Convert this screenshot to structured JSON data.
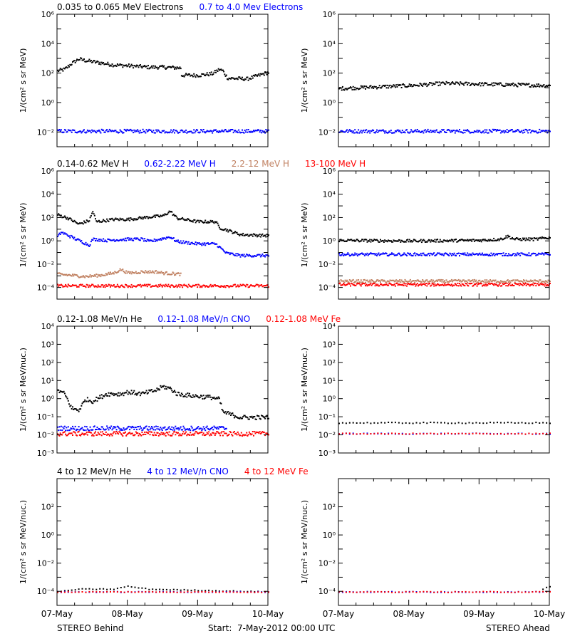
{
  "colors": {
    "black": "#000000",
    "blue": "#0000ff",
    "tan": "#c08060",
    "red": "#ff0000",
    "background": "#ffffff"
  },
  "x_tick_labels": [
    "07-May",
    "08-May",
    "09-May",
    "10-May"
  ],
  "footer": {
    "left": "STEREO Behind",
    "center": "Start:  7-May-2012 00:00 UTC",
    "right": "STEREO Ahead"
  },
  "rows": [
    {
      "ylabel": "1/(cm² s sr MeV)",
      "legend": [
        {
          "text": "0.035 to 0.065 MeV Electrons",
          "color": "black"
        },
        {
          "text": "0.7 to 4.0 Mev Electrons",
          "color": "blue"
        }
      ]
    },
    {
      "ylabel": "1/(cm² s sr MeV)",
      "legend": [
        {
          "text": "0.14-0.62 MeV H",
          "color": "black"
        },
        {
          "text": "0.62-2.22 MeV H",
          "color": "blue"
        },
        {
          "text": "2.2-12 MeV H",
          "color": "tan"
        },
        {
          "text": "13-100 MeV H",
          "color": "red"
        }
      ]
    },
    {
      "ylabel": "1/(cm² s sr MeV/nuc.)",
      "legend": [
        {
          "text": "0.12-1.08 MeV/n He",
          "color": "black"
        },
        {
          "text": "0.12-1.08 MeV/n CNO",
          "color": "blue"
        },
        {
          "text": "0.12-1.08 MeV Fe",
          "color": "red"
        }
      ]
    },
    {
      "ylabel": "1/(cm² s sr MeV/nuc.)",
      "legend": [
        {
          "text": "4 to 12 MeV/n He",
          "color": "black"
        },
        {
          "text": "4 to 12 MeV/n CNO",
          "color": "blue"
        },
        {
          "text": "4 to 12 MeV Fe",
          "color": "red"
        }
      ]
    }
  ],
  "chart_data": [
    {
      "id": "electrons-behind",
      "type": "scatter",
      "spacecraft": "STEREO Behind",
      "x_unit": "days since 07-May-2012 00:00 UTC",
      "xlim": [
        0,
        3
      ],
      "yscale": "log",
      "ylim_exp": [
        -3,
        6
      ],
      "yticks": [
        {
          "exp": -2,
          "label": "10⁻²"
        },
        {
          "exp": 0,
          "label": "10⁰"
        },
        {
          "exp": 2,
          "label": "10²"
        },
        {
          "exp": 4,
          "label": "10⁴"
        },
        {
          "exp": 6,
          "label": "10⁶"
        }
      ],
      "series": [
        {
          "name": "0.035 to 0.065 MeV Electrons",
          "color": "black",
          "log10_flux": [
            [
              0,
              2.2
            ],
            [
              0.1,
              2.3
            ],
            [
              0.2,
              2.7
            ],
            [
              0.3,
              3.0
            ],
            [
              0.4,
              2.9
            ],
            [
              0.6,
              2.75
            ],
            [
              0.8,
              2.6
            ],
            [
              1.0,
              2.55
            ],
            [
              1.3,
              2.45
            ],
            [
              1.5,
              2.45
            ],
            [
              1.75,
              2.4
            ],
            [
              1.76,
              1.9
            ],
            [
              2.0,
              1.9
            ],
            [
              2.2,
              2.0
            ],
            [
              2.3,
              2.3
            ],
            [
              2.35,
              2.2
            ],
            [
              2.42,
              1.7
            ],
            [
              2.7,
              1.65
            ],
            [
              2.8,
              1.8
            ],
            [
              3.0,
              2.1
            ]
          ]
        },
        {
          "name": "0.7 to 4.0 Mev Electrons",
          "color": "blue",
          "log10_flux": [
            [
              0,
              -1.9
            ],
            [
              3,
              -1.9
            ]
          ]
        }
      ]
    },
    {
      "id": "electrons-ahead",
      "type": "scatter",
      "spacecraft": "STEREO Ahead",
      "x_unit": "days since 07-May-2012 00:00 UTC",
      "xlim": [
        0,
        3
      ],
      "yscale": "log",
      "ylim_exp": [
        -3,
        6
      ],
      "yticks": [
        {
          "exp": -2,
          "label": "10⁻²"
        },
        {
          "exp": 0,
          "label": "10⁰"
        },
        {
          "exp": 2,
          "label": "10²"
        },
        {
          "exp": 4,
          "label": "10⁴"
        },
        {
          "exp": 6,
          "label": "10⁶"
        }
      ],
      "series": [
        {
          "name": "0.035 to 0.065 MeV Electrons",
          "color": "black",
          "log10_flux": [
            [
              0,
              1.0
            ],
            [
              1.0,
              1.2
            ],
            [
              1.5,
              1.35
            ],
            [
              2.0,
              1.3
            ],
            [
              3.0,
              1.2
            ]
          ]
        },
        {
          "name": "0.7 to 4.0 Mev Electrons",
          "color": "blue",
          "log10_flux": [
            [
              0,
              -1.9
            ],
            [
              3,
              -1.9
            ]
          ]
        }
      ]
    },
    {
      "id": "protons-behind",
      "type": "scatter",
      "spacecraft": "STEREO Behind",
      "x_unit": "days since 07-May-2012 00:00 UTC",
      "xlim": [
        0,
        3
      ],
      "yscale": "log",
      "ylim_exp": [
        -5,
        6
      ],
      "yticks": [
        {
          "exp": -4,
          "label": "10⁻⁴"
        },
        {
          "exp": -2,
          "label": "10⁻²"
        },
        {
          "exp": 0,
          "label": "10⁰"
        },
        {
          "exp": 2,
          "label": "10²"
        },
        {
          "exp": 4,
          "label": "10⁴"
        },
        {
          "exp": 6,
          "label": "10⁶"
        }
      ],
      "series": [
        {
          "name": "0.14-0.62 MeV H",
          "color": "black",
          "log10_flux": [
            [
              0,
              2.3
            ],
            [
              0.15,
              2.0
            ],
            [
              0.3,
              1.5
            ],
            [
              0.45,
              1.8
            ],
            [
              0.5,
              2.6
            ],
            [
              0.55,
              1.7
            ],
            [
              0.8,
              1.9
            ],
            [
              1.0,
              1.9
            ],
            [
              1.3,
              2.1
            ],
            [
              1.5,
              2.2
            ],
            [
              1.6,
              2.6
            ],
            [
              1.7,
              2.0
            ],
            [
              2.0,
              1.7
            ],
            [
              2.25,
              1.7
            ],
            [
              2.3,
              1.2
            ],
            [
              2.45,
              0.9
            ],
            [
              2.6,
              0.6
            ],
            [
              3.0,
              0.5
            ]
          ]
        },
        {
          "name": "0.62-2.22 MeV H",
          "color": "blue",
          "log10_flux": [
            [
              0,
              0.4
            ],
            [
              0.05,
              0.8
            ],
            [
              0.3,
              0.1
            ],
            [
              0.45,
              -0.3
            ],
            [
              0.5,
              0.2
            ],
            [
              0.7,
              0.1
            ],
            [
              1.0,
              0.2
            ],
            [
              1.2,
              0.2
            ],
            [
              1.3,
              0.0
            ],
            [
              1.6,
              0.4
            ],
            [
              1.7,
              0.0
            ],
            [
              2.0,
              -0.2
            ],
            [
              2.25,
              -0.2
            ],
            [
              2.4,
              -1.0
            ],
            [
              2.6,
              -1.2
            ],
            [
              3.0,
              -1.2
            ]
          ]
        },
        {
          "name": "2.2-12 MeV H",
          "color": "tan",
          "log10_flux": [
            [
              0,
              -2.8
            ],
            [
              0.4,
              -3.0
            ],
            [
              0.6,
              -2.9
            ],
            [
              0.8,
              -2.7
            ],
            [
              0.9,
              -2.4
            ],
            [
              1.0,
              -2.7
            ],
            [
              1.2,
              -2.6
            ],
            [
              1.4,
              -2.6
            ],
            [
              1.5,
              -2.7
            ],
            [
              1.75,
              -2.8
            ]
          ]
        },
        {
          "name": "13-100 MeV H",
          "color": "red",
          "log10_flux": [
            [
              0,
              -3.8
            ],
            [
              3,
              -3.8
            ]
          ]
        }
      ]
    },
    {
      "id": "protons-ahead",
      "type": "scatter",
      "spacecraft": "STEREO Ahead",
      "x_unit": "days since 07-May-2012 00:00 UTC",
      "xlim": [
        0,
        3
      ],
      "yscale": "log",
      "ylim_exp": [
        -5,
        6
      ],
      "yticks": [
        {
          "exp": -4,
          "label": "10⁻⁴"
        },
        {
          "exp": -2,
          "label": "10⁻²"
        },
        {
          "exp": 0,
          "label": "10⁰"
        },
        {
          "exp": 2,
          "label": "10²"
        },
        {
          "exp": 4,
          "label": "10⁴"
        },
        {
          "exp": 6,
          "label": "10⁶"
        }
      ],
      "series": [
        {
          "name": "0.14-0.62 MeV H",
          "color": "black",
          "log10_flux": [
            [
              0,
              0.1
            ],
            [
              1.0,
              0.05
            ],
            [
              2.0,
              0.1
            ],
            [
              2.3,
              0.2
            ],
            [
              2.4,
              0.45
            ],
            [
              2.5,
              0.2
            ],
            [
              2.8,
              0.2
            ],
            [
              3.0,
              0.35
            ]
          ]
        },
        {
          "name": "0.62-2.22 MeV H",
          "color": "blue",
          "log10_flux": [
            [
              0,
              -1.1
            ],
            [
              3,
              -1.1
            ]
          ]
        },
        {
          "name": "2.2-12 MeV H",
          "color": "tan",
          "log10_flux": [
            [
              0,
              -3.4
            ],
            [
              3,
              -3.4
            ]
          ]
        },
        {
          "name": "13-100 MeV H",
          "color": "red",
          "log10_flux": [
            [
              0,
              -3.7
            ],
            [
              3,
              -3.7
            ]
          ]
        }
      ]
    },
    {
      "id": "heavy-ions-low-behind",
      "type": "scatter",
      "spacecraft": "STEREO Behind",
      "x_unit": "days since 07-May-2012 00:00 UTC",
      "xlim": [
        0,
        3
      ],
      "yscale": "log",
      "ylim_exp": [
        -3,
        4
      ],
      "yticks": [
        {
          "exp": -3,
          "label": "10⁻³"
        },
        {
          "exp": -2,
          "label": "10⁻²"
        },
        {
          "exp": -1,
          "label": "10⁻¹"
        },
        {
          "exp": 0,
          "label": "10⁰"
        },
        {
          "exp": 1,
          "label": "10¹"
        },
        {
          "exp": 2,
          "label": "10²"
        },
        {
          "exp": 3,
          "label": "10³"
        },
        {
          "exp": 4,
          "label": "10⁴"
        }
      ],
      "series": [
        {
          "name": "0.12-1.08 MeV/n He",
          "color": "black",
          "log10_flux": [
            [
              0,
              0.5
            ],
            [
              0.1,
              0.3
            ],
            [
              0.2,
              -0.5
            ],
            [
              0.3,
              -0.6
            ],
            [
              0.4,
              0.0
            ],
            [
              0.5,
              -0.1
            ],
            [
              0.7,
              0.3
            ],
            [
              0.9,
              0.3
            ],
            [
              1.0,
              0.4
            ],
            [
              1.2,
              0.3
            ],
            [
              1.4,
              0.5
            ],
            [
              1.5,
              0.7
            ],
            [
              1.6,
              0.6
            ],
            [
              1.7,
              0.3
            ],
            [
              1.9,
              0.2
            ],
            [
              2.2,
              0.1
            ],
            [
              2.3,
              0.0
            ],
            [
              2.35,
              -0.7
            ],
            [
              2.6,
              -1.0
            ],
            [
              3.0,
              -1.0
            ]
          ]
        },
        {
          "name": "0.12-1.08 MeV/n CNO",
          "color": "blue",
          "log10_flux": [
            [
              0,
              -1.6
            ],
            [
              2.4,
              -1.6
            ]
          ]
        },
        {
          "name": "0.12-1.08 MeV Fe",
          "color": "red",
          "log10_flux": [
            [
              0,
              -1.9
            ],
            [
              3,
              -1.9
            ]
          ]
        }
      ]
    },
    {
      "id": "heavy-ions-low-ahead",
      "type": "scatter",
      "spacecraft": "STEREO Ahead",
      "x_unit": "days since 07-May-2012 00:00 UTC",
      "xlim": [
        0,
        3
      ],
      "yscale": "log",
      "ylim_exp": [
        -3,
        4
      ],
      "yticks": [
        {
          "exp": -3,
          "label": "10⁻³"
        },
        {
          "exp": -2,
          "label": "10⁻²"
        },
        {
          "exp": -1,
          "label": "10⁻¹"
        },
        {
          "exp": 0,
          "label": "10⁰"
        },
        {
          "exp": 1,
          "label": "10¹"
        },
        {
          "exp": 2,
          "label": "10²"
        },
        {
          "exp": 3,
          "label": "10³"
        },
        {
          "exp": 4,
          "label": "10⁴"
        }
      ],
      "series": [
        {
          "name": "0.12-1.08 MeV/n He",
          "color": "black",
          "log10_flux": [
            [
              0,
              -1.3
            ],
            [
              3,
              -1.3
            ]
          ]
        },
        {
          "name": "0.12-1.08 MeV/n CNO",
          "color": "blue",
          "log10_flux": [
            [
              0,
              -1.9
            ],
            [
              3,
              -1.9
            ]
          ]
        },
        {
          "name": "0.12-1.08 MeV Fe",
          "color": "red",
          "log10_flux": [
            [
              0,
              -1.9
            ],
            [
              3,
              -1.9
            ]
          ]
        }
      ]
    },
    {
      "id": "heavy-ions-high-behind",
      "type": "scatter",
      "spacecraft": "STEREO Behind",
      "x_unit": "days since 07-May-2012 00:00 UTC",
      "xlim": [
        0,
        3
      ],
      "yscale": "log",
      "ylim_exp": [
        -5,
        4
      ],
      "yticks": [
        {
          "exp": -4,
          "label": "10⁻⁴"
        },
        {
          "exp": -2,
          "label": "10⁻²"
        },
        {
          "exp": 0,
          "label": "10⁰"
        },
        {
          "exp": 2,
          "label": "10²"
        }
      ],
      "series": [
        {
          "name": "4 to 12 MeV/n He",
          "color": "black",
          "log10_flux": [
            [
              0,
              -4.0
            ],
            [
              0.3,
              -3.8
            ],
            [
              0.8,
              -3.8
            ],
            [
              1.0,
              -3.6
            ],
            [
              1.3,
              -3.8
            ],
            [
              3,
              -4.0
            ]
          ]
        },
        {
          "name": "4 to 12 MeV/n CNO",
          "color": "blue",
          "log10_flux": [
            [
              0,
              -4.0
            ],
            [
              3,
              -4.0
            ]
          ]
        },
        {
          "name": "4 to 12 MeV Fe",
          "color": "red",
          "log10_flux": [
            [
              0,
              -4.0
            ],
            [
              3,
              -4.0
            ]
          ]
        }
      ]
    },
    {
      "id": "heavy-ions-high-ahead",
      "type": "scatter",
      "spacecraft": "STEREO Ahead",
      "x_unit": "days since 07-May-2012 00:00 UTC",
      "xlim": [
        0,
        3
      ],
      "yscale": "log",
      "ylim_exp": [
        -5,
        4
      ],
      "yticks": [
        {
          "exp": -4,
          "label": "10⁻⁴"
        },
        {
          "exp": -2,
          "label": "10⁻²"
        },
        {
          "exp": 0,
          "label": "10⁰"
        },
        {
          "exp": 2,
          "label": "10²"
        }
      ],
      "series": [
        {
          "name": "4 to 12 MeV/n He",
          "color": "black",
          "log10_flux": [
            [
              2.9,
              -3.8
            ],
            [
              3,
              -3.6
            ]
          ]
        },
        {
          "name": "4 to 12 MeV/n CNO",
          "color": "blue",
          "log10_flux": [
            [
              0,
              -4.0
            ],
            [
              3,
              -4.0
            ]
          ]
        },
        {
          "name": "4 to 12 MeV Fe",
          "color": "red",
          "log10_flux": [
            [
              0,
              -4.0
            ],
            [
              3,
              -4.0
            ]
          ]
        }
      ]
    }
  ]
}
